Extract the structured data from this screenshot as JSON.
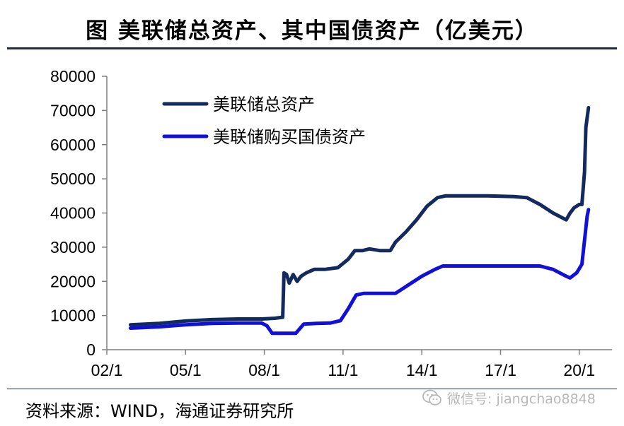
{
  "title": "图 美联储总资产、其中国债资产（亿美元）",
  "source": "资料来源：WIND，海通证券研究所",
  "watermark": {
    "text": "微信号: jiangchao8848",
    "icon": "wechat-icon"
  },
  "colors": {
    "total_assets": "#132a5e",
    "treasury_assets": "#1010d8",
    "axis": "#7f7f7f",
    "rule": "#1f2a4a"
  },
  "chart_data": {
    "type": "line",
    "title": "",
    "xlabel": "",
    "ylabel": "",
    "ylim": [
      0,
      80000
    ],
    "xlim": [
      2002.0,
      2021.0
    ],
    "grid": false,
    "legend": "top-left inside plot",
    "y_ticks": [
      "0",
      "10000",
      "20000",
      "30000",
      "40000",
      "50000",
      "60000",
      "70000",
      "80000"
    ],
    "x_ticks": [
      {
        "label": "02/1",
        "x": 2002.0
      },
      {
        "label": "05/1",
        "x": 2005.0
      },
      {
        "label": "08/1",
        "x": 2008.0
      },
      {
        "label": "11/1",
        "x": 2011.0
      },
      {
        "label": "14/1",
        "x": 2014.0
      },
      {
        "label": "17/1",
        "x": 2017.0
      },
      {
        "label": "20/1",
        "x": 2020.0
      }
    ],
    "series": [
      {
        "name": "美联储总资产",
        "key": "total_assets",
        "x": [
          2002.9,
          2004.0,
          2005.0,
          2006.0,
          2007.0,
          2007.9,
          2008.4,
          2008.7,
          2008.75,
          2008.85,
          2008.95,
          2009.1,
          2009.25,
          2009.4,
          2009.6,
          2009.9,
          2010.3,
          2010.8,
          2011.2,
          2011.45,
          2011.75,
          2012.0,
          2012.4,
          2012.6,
          2012.8,
          2013.0,
          2013.4,
          2013.8,
          2014.2,
          2014.6,
          2014.9,
          2015.5,
          2016.5,
          2017.5,
          2018.0,
          2018.5,
          2019.0,
          2019.5,
          2019.65,
          2019.8,
          2020.0,
          2020.1,
          2020.2,
          2020.25,
          2020.35
        ],
        "y": [
          7300,
          7700,
          8400,
          8800,
          9000,
          9000,
          9200,
          9500,
          22500,
          22000,
          19500,
          22000,
          20000,
          21500,
          22500,
          23500,
          23500,
          24000,
          26500,
          29000,
          29000,
          29500,
          29000,
          29000,
          29000,
          31500,
          34500,
          38000,
          42000,
          44500,
          45000,
          45000,
          45000,
          44800,
          44500,
          42500,
          40000,
          38000,
          40000,
          41500,
          42500,
          42500,
          52000,
          65000,
          70800
        ]
      },
      {
        "name": "美联储购买国债资产",
        "key": "treasury_assets",
        "x": [
          2002.9,
          2004.0,
          2005.0,
          2006.0,
          2007.0,
          2007.9,
          2008.1,
          2008.3,
          2008.9,
          2009.2,
          2009.5,
          2010.0,
          2010.5,
          2010.9,
          2011.2,
          2011.5,
          2011.8,
          2012.2,
          2012.7,
          2013.0,
          2013.5,
          2014.0,
          2014.5,
          2014.8,
          2015.0,
          2016.0,
          2017.0,
          2018.0,
          2018.5,
          2019.0,
          2019.5,
          2019.65,
          2019.9,
          2020.1,
          2020.2,
          2020.3,
          2020.35
        ],
        "y": [
          6300,
          6700,
          7300,
          7700,
          7800,
          7800,
          7000,
          4800,
          4800,
          4800,
          7500,
          7700,
          7800,
          8500,
          12000,
          16000,
          16500,
          16500,
          16500,
          16500,
          19000,
          21500,
          23500,
          24500,
          24500,
          24500,
          24500,
          24500,
          24500,
          23500,
          21500,
          21000,
          22500,
          25000,
          32000,
          39000,
          41000
        ]
      }
    ]
  }
}
